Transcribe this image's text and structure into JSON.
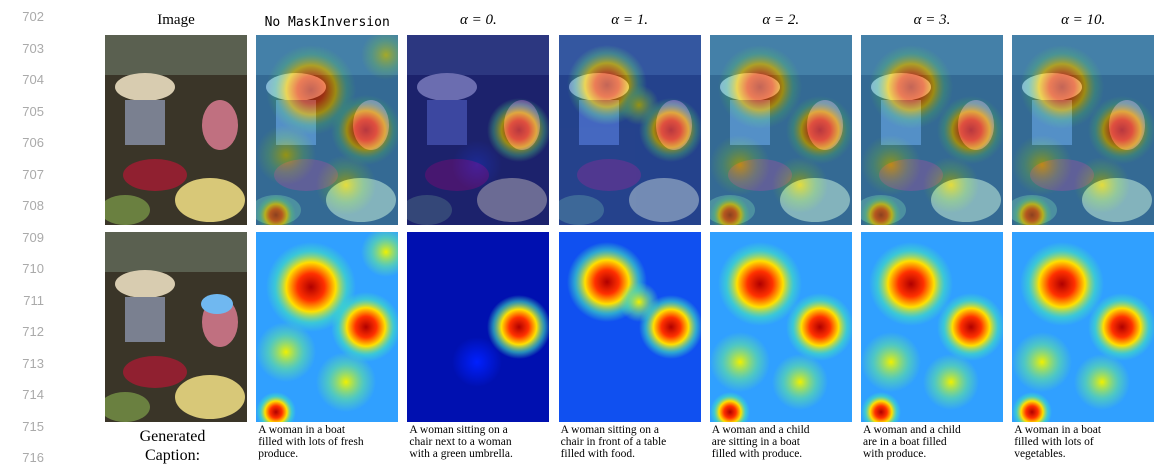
{
  "line_numbers": [
    "702",
    "703",
    "704",
    "705",
    "706",
    "707",
    "708",
    "709",
    "710",
    "711",
    "712",
    "713",
    "714",
    "715",
    "716"
  ],
  "columns": [
    {
      "header": "Image",
      "caption": null
    },
    {
      "header": "No MaskInversion",
      "caption": [
        "A woman in a boat",
        "filled with lots of fresh",
        "produce."
      ]
    },
    {
      "header": "α = 0.",
      "caption": [
        "A woman sitting on a",
        "chair next to a woman",
        "with a green umbrella."
      ]
    },
    {
      "header": "α = 1.",
      "caption": [
        "A woman sitting on a",
        "chair in front of a table",
        "filled with food."
      ]
    },
    {
      "header": "α = 2.",
      "caption": [
        "A woman and a child",
        "are sitting in a boat",
        "filled with produce."
      ]
    },
    {
      "header": "α = 3.",
      "caption": [
        "A woman and a child",
        "are in a boat filled",
        "with produce."
      ]
    },
    {
      "header": "α = 10.",
      "caption": [
        "A woman in a boat",
        "filled with lots of",
        "vegetables."
      ]
    }
  ],
  "row_label": [
    "Generated",
    "Caption:"
  ]
}
